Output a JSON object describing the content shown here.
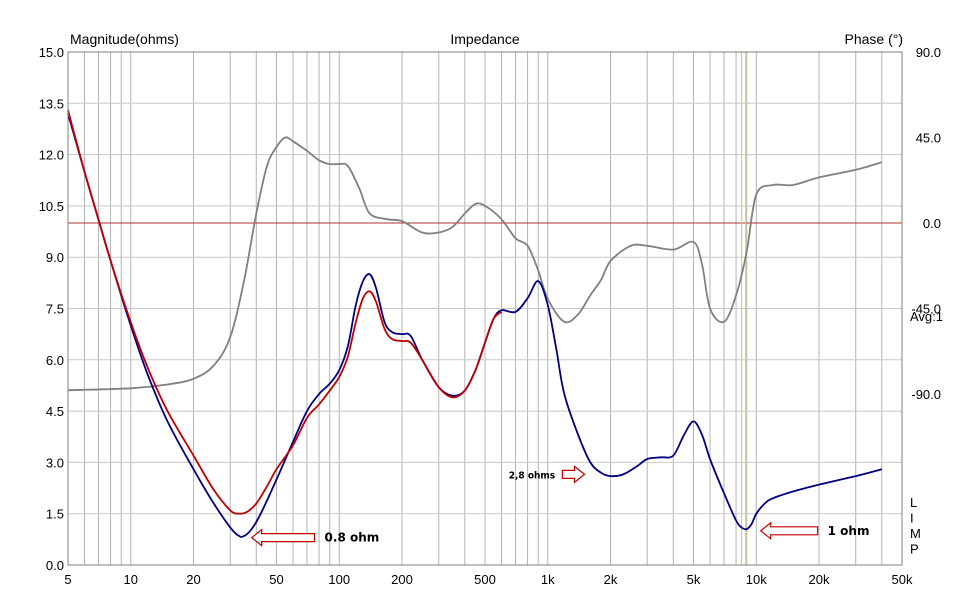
{
  "chart_data": {
    "type": "line",
    "title": "Impedance",
    "left_axis_label": "Magnitude(ohms)",
    "right_axis_label": "Phase (°)",
    "side_note": "Avg:1",
    "vertical_text": [
      "L",
      "I",
      "M",
      "P"
    ],
    "x_scale": "log",
    "xlim": [
      5,
      50000
    ],
    "ylim_left": [
      0,
      15
    ],
    "ylim_right": [
      -180,
      90
    ],
    "x_tick_labels": [
      {
        "value": 5,
        "label": "5"
      },
      {
        "value": 10,
        "label": "10"
      },
      {
        "value": 20,
        "label": "20"
      },
      {
        "value": 50,
        "label": "50"
      },
      {
        "value": 100,
        "label": "100"
      },
      {
        "value": 200,
        "label": "200"
      },
      {
        "value": 500,
        "label": "500"
      },
      {
        "value": 1000,
        "label": "1k"
      },
      {
        "value": 2000,
        "label": "2k"
      },
      {
        "value": 5000,
        "label": "5k"
      },
      {
        "value": 10000,
        "label": "10k"
      },
      {
        "value": 20000,
        "label": "20k"
      },
      {
        "value": 50000,
        "label": "50k"
      }
    ],
    "y_left_tick_labels": [
      "0.0",
      "1.5",
      "3.0",
      "4.5",
      "6.0",
      "7.5",
      "9.0",
      "10.5",
      "12.0",
      "13.5",
      "15.0"
    ],
    "y_left_tick_values": [
      0,
      1.5,
      3,
      4.5,
      6,
      7.5,
      9,
      10.5,
      12,
      13.5,
      15
    ],
    "y_right_tick_labels": [
      "90.0",
      "45.0",
      "0.0",
      "-45.0",
      "-90.0"
    ],
    "y_right_tick_values": [
      90,
      45,
      0,
      -45,
      -90
    ],
    "reference_line_phase": 0,
    "marker_lines_hz": [
      8500,
      8900
    ],
    "series": [
      {
        "axis": "left",
        "color": "#000080",
        "points": [
          [
            5,
            13.2
          ],
          [
            6,
            11.5
          ],
          [
            7,
            10.1
          ],
          [
            8,
            8.9
          ],
          [
            10,
            7.0
          ],
          [
            12,
            5.6
          ],
          [
            15,
            4.2
          ],
          [
            20,
            2.8
          ],
          [
            25,
            1.8
          ],
          [
            30,
            1.1
          ],
          [
            33,
            0.85
          ],
          [
            35,
            0.85
          ],
          [
            38,
            1.05
          ],
          [
            42,
            1.5
          ],
          [
            50,
            2.5
          ],
          [
            60,
            3.6
          ],
          [
            70,
            4.5
          ],
          [
            80,
            5.0
          ],
          [
            90,
            5.3
          ],
          [
            100,
            5.7
          ],
          [
            110,
            6.4
          ],
          [
            120,
            7.6
          ],
          [
            130,
            8.3
          ],
          [
            140,
            8.5
          ],
          [
            150,
            8.1
          ],
          [
            165,
            7.1
          ],
          [
            180,
            6.8
          ],
          [
            200,
            6.75
          ],
          [
            220,
            6.7
          ],
          [
            250,
            6.0
          ],
          [
            300,
            5.2
          ],
          [
            350,
            4.95
          ],
          [
            400,
            5.1
          ],
          [
            450,
            5.7
          ],
          [
            500,
            6.5
          ],
          [
            550,
            7.2
          ],
          [
            600,
            7.45
          ],
          [
            700,
            7.4
          ],
          [
            800,
            7.8
          ],
          [
            900,
            8.3
          ],
          [
            1000,
            7.6
          ],
          [
            1100,
            6.3
          ],
          [
            1200,
            5.0
          ],
          [
            1400,
            3.8
          ],
          [
            1600,
            3.0
          ],
          [
            1800,
            2.7
          ],
          [
            2000,
            2.6
          ],
          [
            2300,
            2.65
          ],
          [
            2700,
            2.9
          ],
          [
            3000,
            3.1
          ],
          [
            3500,
            3.15
          ],
          [
            4000,
            3.2
          ],
          [
            4500,
            3.8
          ],
          [
            5000,
            4.2
          ],
          [
            5500,
            3.8
          ],
          [
            6000,
            3.1
          ],
          [
            7000,
            2.1
          ],
          [
            8000,
            1.3
          ],
          [
            8500,
            1.1
          ],
          [
            9000,
            1.05
          ],
          [
            9500,
            1.2
          ],
          [
            10000,
            1.5
          ],
          [
            11000,
            1.8
          ],
          [
            12000,
            1.95
          ],
          [
            15000,
            2.15
          ],
          [
            20000,
            2.35
          ],
          [
            30000,
            2.6
          ],
          [
            40000,
            2.8
          ]
        ]
      },
      {
        "axis": "left",
        "color": "#c00000",
        "points": [
          [
            5,
            13.3
          ],
          [
            6,
            11.5
          ],
          [
            7,
            10.1
          ],
          [
            8,
            8.9
          ],
          [
            10,
            7.1
          ],
          [
            12,
            5.8
          ],
          [
            15,
            4.5
          ],
          [
            20,
            3.2
          ],
          [
            25,
            2.2
          ],
          [
            30,
            1.6
          ],
          [
            33,
            1.5
          ],
          [
            36,
            1.55
          ],
          [
            40,
            1.8
          ],
          [
            45,
            2.3
          ],
          [
            50,
            2.8
          ],
          [
            60,
            3.5
          ],
          [
            70,
            4.3
          ],
          [
            80,
            4.7
          ],
          [
            90,
            5.1
          ],
          [
            100,
            5.5
          ],
          [
            110,
            6.1
          ],
          [
            120,
            7.1
          ],
          [
            130,
            7.8
          ],
          [
            140,
            8.0
          ],
          [
            150,
            7.7
          ],
          [
            165,
            6.9
          ],
          [
            180,
            6.6
          ],
          [
            200,
            6.55
          ],
          [
            220,
            6.5
          ],
          [
            250,
            6.0
          ],
          [
            300,
            5.2
          ],
          [
            350,
            4.9
          ],
          [
            400,
            5.1
          ],
          [
            450,
            5.7
          ],
          [
            500,
            6.5
          ],
          [
            550,
            7.2
          ],
          [
            600,
            7.4
          ]
        ]
      },
      {
        "axis": "right",
        "color": "#808080",
        "points": [
          [
            5,
            -88
          ],
          [
            10,
            -87
          ],
          [
            15,
            -85
          ],
          [
            20,
            -82
          ],
          [
            25,
            -75
          ],
          [
            30,
            -60
          ],
          [
            35,
            -30
          ],
          [
            40,
            5
          ],
          [
            45,
            30
          ],
          [
            50,
            40
          ],
          [
            55,
            45
          ],
          [
            60,
            43
          ],
          [
            70,
            38
          ],
          [
            80,
            33
          ],
          [
            90,
            31
          ],
          [
            100,
            31
          ],
          [
            110,
            30
          ],
          [
            125,
            18
          ],
          [
            140,
            5
          ],
          [
            170,
            2
          ],
          [
            200,
            1
          ],
          [
            250,
            -5
          ],
          [
            300,
            -5
          ],
          [
            350,
            -2
          ],
          [
            400,
            5
          ],
          [
            450,
            10
          ],
          [
            500,
            9
          ],
          [
            600,
            2
          ],
          [
            700,
            -8
          ],
          [
            800,
            -12
          ],
          [
            900,
            -25
          ],
          [
            1000,
            -40
          ],
          [
            1200,
            -52
          ],
          [
            1400,
            -48
          ],
          [
            1600,
            -38
          ],
          [
            1800,
            -30
          ],
          [
            2000,
            -20
          ],
          [
            2500,
            -12
          ],
          [
            3000,
            -12
          ],
          [
            4000,
            -14
          ],
          [
            5000,
            -10
          ],
          [
            5500,
            -22
          ],
          [
            6000,
            -45
          ],
          [
            7000,
            -52
          ],
          [
            8000,
            -38
          ],
          [
            9000,
            -15
          ],
          [
            10000,
            15
          ],
          [
            12000,
            20
          ],
          [
            15000,
            20
          ],
          [
            20000,
            24
          ],
          [
            30000,
            28
          ],
          [
            40000,
            32
          ]
        ]
      }
    ],
    "annotations": [
      {
        "text": "0.8 ohm",
        "x": 85,
        "y": 0.8,
        "arrow_to_x": 38
      },
      {
        "text": "2,8 ohms",
        "x": 650,
        "y": 2.65,
        "arrow_to_x": 1500,
        "style": "small"
      },
      {
        "text": "1 ohm",
        "x": 22000,
        "y": 1.0,
        "arrow_to_x": 10500
      }
    ]
  }
}
